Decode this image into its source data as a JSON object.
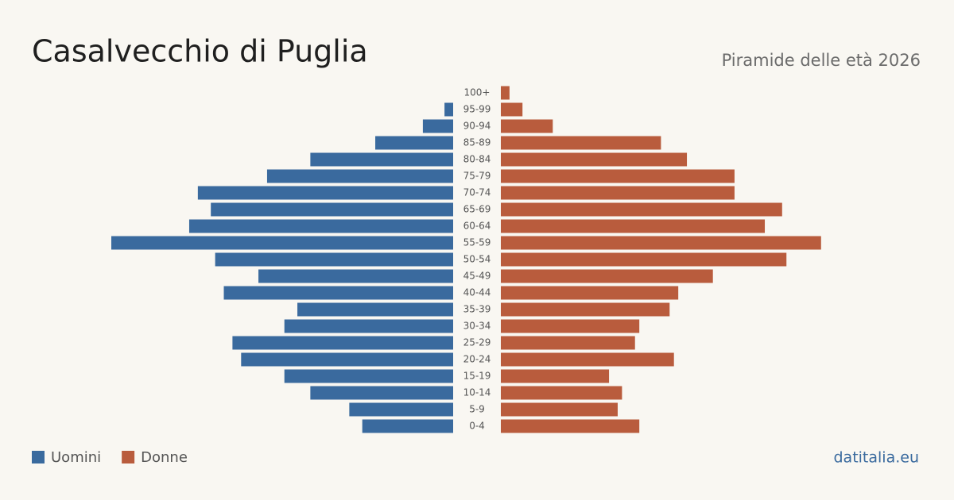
{
  "chart_data": {
    "type": "pyramid",
    "title": "Casalvecchio di Puglia",
    "subtitle": "Piramide delle età 2026",
    "source": "datitalia.eu",
    "categories": [
      "100+",
      "95-99",
      "90-94",
      "85-89",
      "80-84",
      "75-79",
      "70-74",
      "65-69",
      "60-64",
      "55-59",
      "50-54",
      "45-49",
      "40-44",
      "35-39",
      "30-34",
      "25-29",
      "20-24",
      "15-19",
      "10-14",
      "5-9",
      "0-4"
    ],
    "series": [
      {
        "name": "Uomini",
        "color": "#3a6a9e",
        "values": [
          0,
          2,
          7,
          18,
          33,
          43,
          59,
          56,
          61,
          79,
          55,
          45,
          53,
          36,
          39,
          51,
          49,
          39,
          33,
          24,
          21
        ]
      },
      {
        "name": "Donne",
        "color": "#b95c3d",
        "values": [
          2,
          5,
          12,
          37,
          43,
          54,
          54,
          65,
          61,
          74,
          66,
          49,
          41,
          39,
          32,
          31,
          40,
          25,
          28,
          27,
          32
        ]
      }
    ]
  }
}
